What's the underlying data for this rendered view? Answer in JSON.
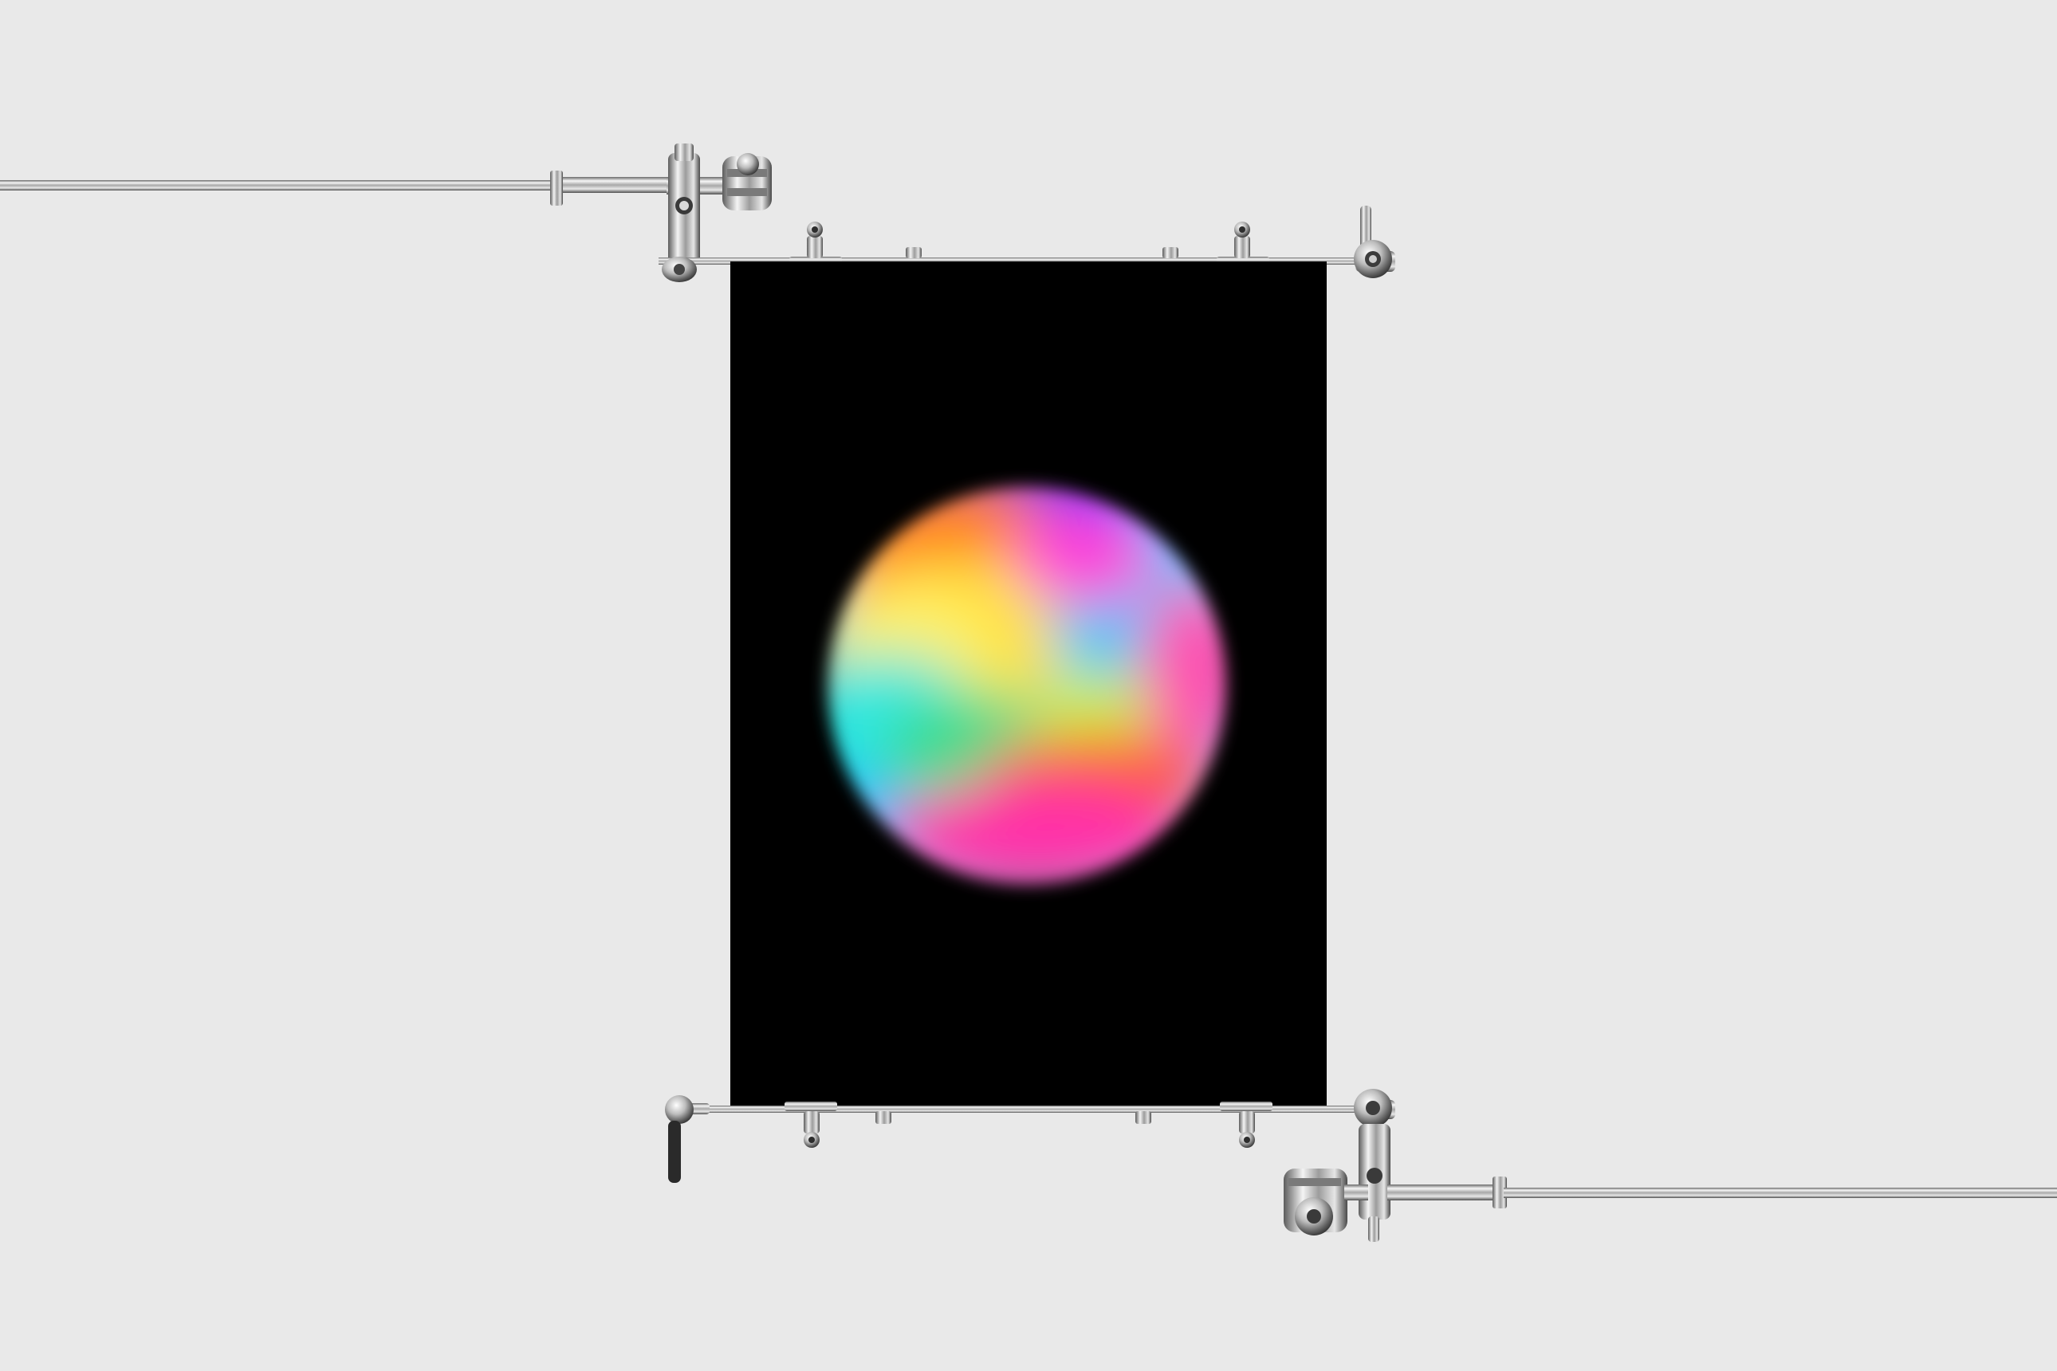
{
  "scene": {
    "background_color": "#e9e9e9",
    "poster": {
      "background_color": "#000000",
      "artwork": "blurred-rainbow-orb",
      "orb_colors": [
        "#ff2fa8",
        "#ff5a1f",
        "#ffd23a",
        "#f5ff6a",
        "#2ee7e0",
        "#1fb6ff",
        "#3a6bff",
        "#8a3bff",
        "#ff2fd0"
      ]
    },
    "hardware": {
      "material": "chrome",
      "colors": {
        "light": "#f6f6f6",
        "mid": "#b9b9b9",
        "dark": "#5a5a5a",
        "knob": "#2a2a2a"
      }
    }
  }
}
